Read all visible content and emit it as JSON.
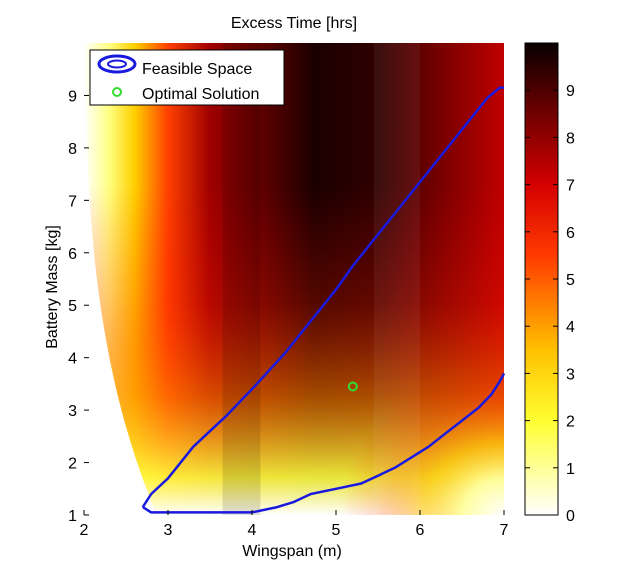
{
  "chart_data": {
    "type": "heatmap",
    "title": "Excess Time [hrs]",
    "xlabel": "Wingspan (m)",
    "ylabel": "Battery Mass [kg]",
    "xlim": [
      2,
      7
    ],
    "ylim": [
      1,
      10
    ],
    "xticks": [
      "2",
      "3",
      "4",
      "5",
      "6",
      "7"
    ],
    "yticks": [
      "1",
      "2",
      "3",
      "4",
      "5",
      "6",
      "7",
      "8",
      "9"
    ],
    "colormap": "hot",
    "colorbar": {
      "range": [
        0,
        10
      ],
      "ticks": [
        "0",
        "1",
        "2",
        "3",
        "4",
        "5",
        "6",
        "7",
        "8",
        "9"
      ]
    },
    "legend": {
      "placement": "top-left",
      "entries": [
        {
          "label": "Feasible Space",
          "color": "#1a1adf",
          "marker": "ellipse"
        },
        {
          "label": "Optimal Solution",
          "color": "#33dd33",
          "marker": "circle"
        }
      ]
    },
    "feasible_boundary": {
      "upper": {
        "x": [
          2.7,
          2.8,
          3.0,
          3.3,
          3.5,
          3.7,
          4.0,
          4.2,
          4.4,
          4.6,
          4.8,
          5.0,
          5.2,
          5.4,
          5.6,
          5.8,
          6.0,
          6.2,
          6.4,
          6.6,
          6.8,
          6.95,
          7.0
        ],
        "y": [
          1.15,
          1.4,
          1.7,
          2.3,
          2.6,
          2.9,
          3.4,
          3.75,
          4.1,
          4.5,
          4.9,
          5.3,
          5.75,
          6.15,
          6.55,
          6.95,
          7.35,
          7.75,
          8.15,
          8.55,
          8.95,
          9.15,
          9.15
        ]
      },
      "lower": {
        "x": [
          2.7,
          2.8,
          3.5,
          4.0,
          4.3,
          4.5,
          4.7,
          5.0,
          5.3,
          5.5,
          5.7,
          5.9,
          6.1,
          6.3,
          6.5,
          6.7,
          6.85,
          6.95,
          7.0
        ],
        "y": [
          1.15,
          1.05,
          1.05,
          1.05,
          1.15,
          1.25,
          1.4,
          1.5,
          1.6,
          1.75,
          1.9,
          2.1,
          2.3,
          2.55,
          2.8,
          3.05,
          3.3,
          3.55,
          3.7
        ]
      }
    },
    "optimal_solution": {
      "x": 5.2,
      "y": 3.45
    }
  }
}
